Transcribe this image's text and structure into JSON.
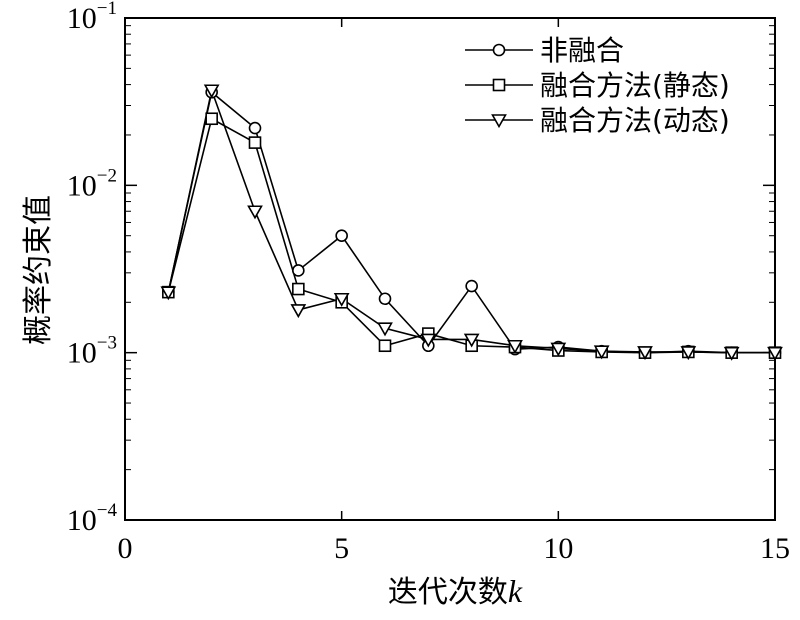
{
  "chart_data": {
    "type": "line",
    "title": "",
    "xlabel": "迭代次数",
    "xlabel_var": "k",
    "ylabel": "概率约束值",
    "xlim": [
      0,
      15
    ],
    "ylim": [
      0.0001,
      0.1
    ],
    "yscale": "log",
    "x_ticks": [
      "0",
      "5",
      "10",
      "15"
    ],
    "y_ticks": [
      {
        "base": "10",
        "exp": "−4"
      },
      {
        "base": "10",
        "exp": "−3"
      },
      {
        "base": "10",
        "exp": "−2"
      },
      {
        "base": "10",
        "exp": "−1"
      }
    ],
    "legend_position": "top-right",
    "x": [
      1,
      2,
      3,
      4,
      5,
      6,
      7,
      8,
      9,
      10,
      11,
      12,
      13,
      14,
      15
    ],
    "series": [
      {
        "name": "非融合",
        "marker": "circle",
        "values": [
          0.0023,
          0.036,
          0.022,
          0.0031,
          0.005,
          0.0021,
          0.0011,
          0.0025,
          0.00105,
          0.00108,
          0.00102,
          0.001,
          0.00102,
          0.001,
          0.001
        ]
      },
      {
        "name": "融合方法(静态)",
        "marker": "square",
        "values": [
          0.0023,
          0.025,
          0.018,
          0.0024,
          0.002,
          0.0011,
          0.0013,
          0.0011,
          0.00108,
          0.00103,
          0.00101,
          0.001,
          0.00101,
          0.001,
          0.001
        ]
      },
      {
        "name": "融合方法(动态)",
        "marker": "triangle-down",
        "values": [
          0.0023,
          0.037,
          0.007,
          0.0018,
          0.0021,
          0.0014,
          0.0012,
          0.0012,
          0.0011,
          0.00106,
          0.00102,
          0.00101,
          0.00101,
          0.001,
          0.001
        ]
      }
    ],
    "grid": false
  }
}
